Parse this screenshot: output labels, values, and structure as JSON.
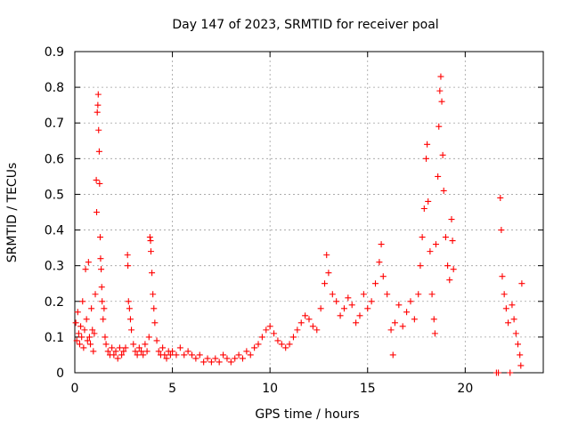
{
  "chart_data": {
    "type": "scatter",
    "title": "Day 147 of 2023, SRMTID for receiver poal",
    "xlabel": "GPS time / hours",
    "ylabel": "SRMTID / TECUs",
    "xlim": [
      0,
      24
    ],
    "ylim": [
      0,
      0.9
    ],
    "xticks": [
      0,
      5,
      10,
      15,
      20
    ],
    "yticks": [
      0,
      0.1,
      0.2,
      0.3,
      0.4,
      0.5,
      0.6,
      0.7,
      0.8,
      0.9
    ],
    "xtick_labels": [
      "0",
      "5",
      "10",
      "15",
      "20"
    ],
    "ytick_labels": [
      "0",
      "0.1",
      "0.2",
      "0.3",
      "0.4",
      "0.5",
      "0.6",
      "0.7",
      "0.8",
      "0.9"
    ],
    "grid": true,
    "marker": "+",
    "series": [
      {
        "name": "SRMTID",
        "color": "#ff0000",
        "points": [
          [
            0.05,
            0.14
          ],
          [
            0.1,
            0.09
          ],
          [
            0.15,
            0.17
          ],
          [
            0.2,
            0.11
          ],
          [
            0.25,
            0.08
          ],
          [
            0.3,
            0.13
          ],
          [
            0.35,
            0.1
          ],
          [
            0.4,
            0.2
          ],
          [
            0.45,
            0.07
          ],
          [
            0.5,
            0.12
          ],
          [
            0.55,
            0.29
          ],
          [
            0.6,
            0.15
          ],
          [
            0.65,
            0.09
          ],
          [
            0.7,
            0.31
          ],
          [
            0.75,
            0.1
          ],
          [
            0.8,
            0.08
          ],
          [
            0.85,
            0.18
          ],
          [
            0.9,
            0.12
          ],
          [
            0.95,
            0.06
          ],
          [
            1.0,
            0.11
          ],
          [
            1.05,
            0.22
          ],
          [
            1.1,
            0.54
          ],
          [
            1.12,
            0.45
          ],
          [
            1.15,
            0.73
          ],
          [
            1.18,
            0.75
          ],
          [
            1.2,
            0.78
          ],
          [
            1.22,
            0.68
          ],
          [
            1.25,
            0.62
          ],
          [
            1.27,
            0.53
          ],
          [
            1.3,
            0.38
          ],
          [
            1.32,
            0.32
          ],
          [
            1.35,
            0.29
          ],
          [
            1.38,
            0.24
          ],
          [
            1.4,
            0.2
          ],
          [
            1.45,
            0.15
          ],
          [
            1.5,
            0.18
          ],
          [
            1.55,
            0.1
          ],
          [
            1.6,
            0.08
          ],
          [
            1.7,
            0.06
          ],
          [
            1.8,
            0.05
          ],
          [
            1.9,
            0.07
          ],
          [
            2.0,
            0.05
          ],
          [
            2.1,
            0.06
          ],
          [
            2.2,
            0.04
          ],
          [
            2.3,
            0.07
          ],
          [
            2.4,
            0.05
          ],
          [
            2.5,
            0.06
          ],
          [
            2.6,
            0.07
          ],
          [
            2.7,
            0.33
          ],
          [
            2.72,
            0.3
          ],
          [
            2.75,
            0.2
          ],
          [
            2.8,
            0.18
          ],
          [
            2.85,
            0.15
          ],
          [
            2.9,
            0.12
          ],
          [
            3.0,
            0.08
          ],
          [
            3.1,
            0.06
          ],
          [
            3.2,
            0.05
          ],
          [
            3.3,
            0.07
          ],
          [
            3.4,
            0.06
          ],
          [
            3.5,
            0.05
          ],
          [
            3.6,
            0.08
          ],
          [
            3.7,
            0.06
          ],
          [
            3.8,
            0.1
          ],
          [
            3.85,
            0.38
          ],
          [
            3.88,
            0.37
          ],
          [
            3.9,
            0.34
          ],
          [
            3.95,
            0.28
          ],
          [
            4.0,
            0.22
          ],
          [
            4.05,
            0.18
          ],
          [
            4.1,
            0.14
          ],
          [
            4.2,
            0.09
          ],
          [
            4.3,
            0.06
          ],
          [
            4.4,
            0.05
          ],
          [
            4.5,
            0.07
          ],
          [
            4.6,
            0.05
          ],
          [
            4.7,
            0.04
          ],
          [
            4.8,
            0.06
          ],
          [
            4.9,
            0.05
          ],
          [
            5.0,
            0.06
          ],
          [
            5.2,
            0.05
          ],
          [
            5.4,
            0.07
          ],
          [
            5.6,
            0.05
          ],
          [
            5.8,
            0.06
          ],
          [
            6.0,
            0.05
          ],
          [
            6.2,
            0.04
          ],
          [
            6.4,
            0.05
          ],
          [
            6.6,
            0.03
          ],
          [
            6.8,
            0.04
          ],
          [
            7.0,
            0.03
          ],
          [
            7.2,
            0.04
          ],
          [
            7.4,
            0.03
          ],
          [
            7.6,
            0.05
          ],
          [
            7.8,
            0.04
          ],
          [
            8.0,
            0.03
          ],
          [
            8.2,
            0.04
          ],
          [
            8.4,
            0.05
          ],
          [
            8.6,
            0.04
          ],
          [
            8.8,
            0.06
          ],
          [
            9.0,
            0.05
          ],
          [
            9.2,
            0.07
          ],
          [
            9.4,
            0.08
          ],
          [
            9.6,
            0.1
          ],
          [
            9.8,
            0.12
          ],
          [
            10.0,
            0.13
          ],
          [
            10.2,
            0.11
          ],
          [
            10.4,
            0.09
          ],
          [
            10.6,
            0.08
          ],
          [
            10.8,
            0.07
          ],
          [
            11.0,
            0.08
          ],
          [
            11.2,
            0.1
          ],
          [
            11.4,
            0.12
          ],
          [
            11.6,
            0.14
          ],
          [
            11.8,
            0.16
          ],
          [
            12.0,
            0.15
          ],
          [
            12.2,
            0.13
          ],
          [
            12.4,
            0.12
          ],
          [
            12.6,
            0.18
          ],
          [
            12.8,
            0.25
          ],
          [
            12.9,
            0.33
          ],
          [
            13.0,
            0.28
          ],
          [
            13.2,
            0.22
          ],
          [
            13.4,
            0.2
          ],
          [
            13.6,
            0.16
          ],
          [
            13.8,
            0.18
          ],
          [
            14.0,
            0.21
          ],
          [
            14.2,
            0.19
          ],
          [
            14.4,
            0.14
          ],
          [
            14.6,
            0.16
          ],
          [
            14.8,
            0.22
          ],
          [
            15.0,
            0.18
          ],
          [
            15.2,
            0.2
          ],
          [
            15.4,
            0.25
          ],
          [
            15.6,
            0.31
          ],
          [
            15.7,
            0.36
          ],
          [
            15.8,
            0.27
          ],
          [
            16.0,
            0.22
          ],
          [
            16.2,
            0.12
          ],
          [
            16.3,
            0.05
          ],
          [
            16.4,
            0.14
          ],
          [
            16.6,
            0.19
          ],
          [
            16.8,
            0.13
          ],
          [
            17.0,
            0.17
          ],
          [
            17.2,
            0.2
          ],
          [
            17.4,
            0.15
          ],
          [
            17.6,
            0.22
          ],
          [
            17.7,
            0.3
          ],
          [
            17.8,
            0.38
          ],
          [
            17.9,
            0.46
          ],
          [
            18.0,
            0.6
          ],
          [
            18.05,
            0.64
          ],
          [
            18.1,
            0.48
          ],
          [
            18.2,
            0.34
          ],
          [
            18.3,
            0.22
          ],
          [
            18.4,
            0.15
          ],
          [
            18.45,
            0.11
          ],
          [
            18.5,
            0.36
          ],
          [
            18.6,
            0.55
          ],
          [
            18.65,
            0.69
          ],
          [
            18.7,
            0.79
          ],
          [
            18.75,
            0.83
          ],
          [
            18.8,
            0.76
          ],
          [
            18.85,
            0.61
          ],
          [
            18.9,
            0.51
          ],
          [
            19.0,
            0.38
          ],
          [
            19.1,
            0.3
          ],
          [
            19.2,
            0.26
          ],
          [
            19.3,
            0.43
          ],
          [
            19.35,
            0.37
          ],
          [
            19.4,
            0.29
          ],
          [
            21.6,
            0.0
          ],
          [
            21.7,
            0.0
          ],
          [
            21.8,
            0.49
          ],
          [
            21.85,
            0.4
          ],
          [
            21.9,
            0.27
          ],
          [
            22.0,
            0.22
          ],
          [
            22.1,
            0.18
          ],
          [
            22.2,
            0.14
          ],
          [
            22.3,
            0.0
          ],
          [
            22.4,
            0.19
          ],
          [
            22.5,
            0.15
          ],
          [
            22.6,
            0.11
          ],
          [
            22.7,
            0.08
          ],
          [
            22.8,
            0.05
          ],
          [
            22.85,
            0.02
          ],
          [
            22.9,
            0.25
          ]
        ]
      }
    ]
  }
}
